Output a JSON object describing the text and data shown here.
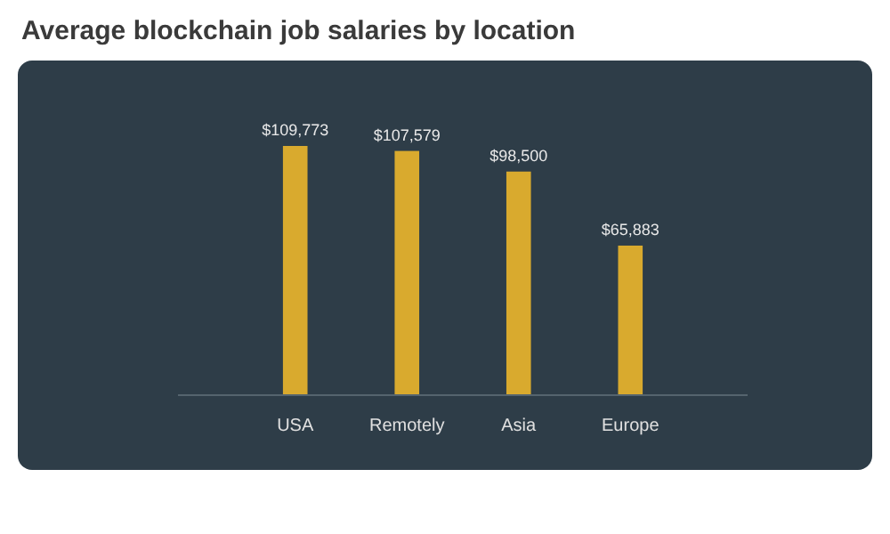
{
  "chart_data": {
    "type": "bar",
    "title": "Average blockchain job salaries by location",
    "categories": [
      "USA",
      "Remotely",
      "Asia",
      "Europe"
    ],
    "values": [
      109773,
      107579,
      98500,
      65883
    ],
    "value_labels": [
      "$109,773",
      "$107,579",
      "$98,500",
      "$65,883"
    ],
    "color": "#d9aa2e",
    "grid": false
  }
}
